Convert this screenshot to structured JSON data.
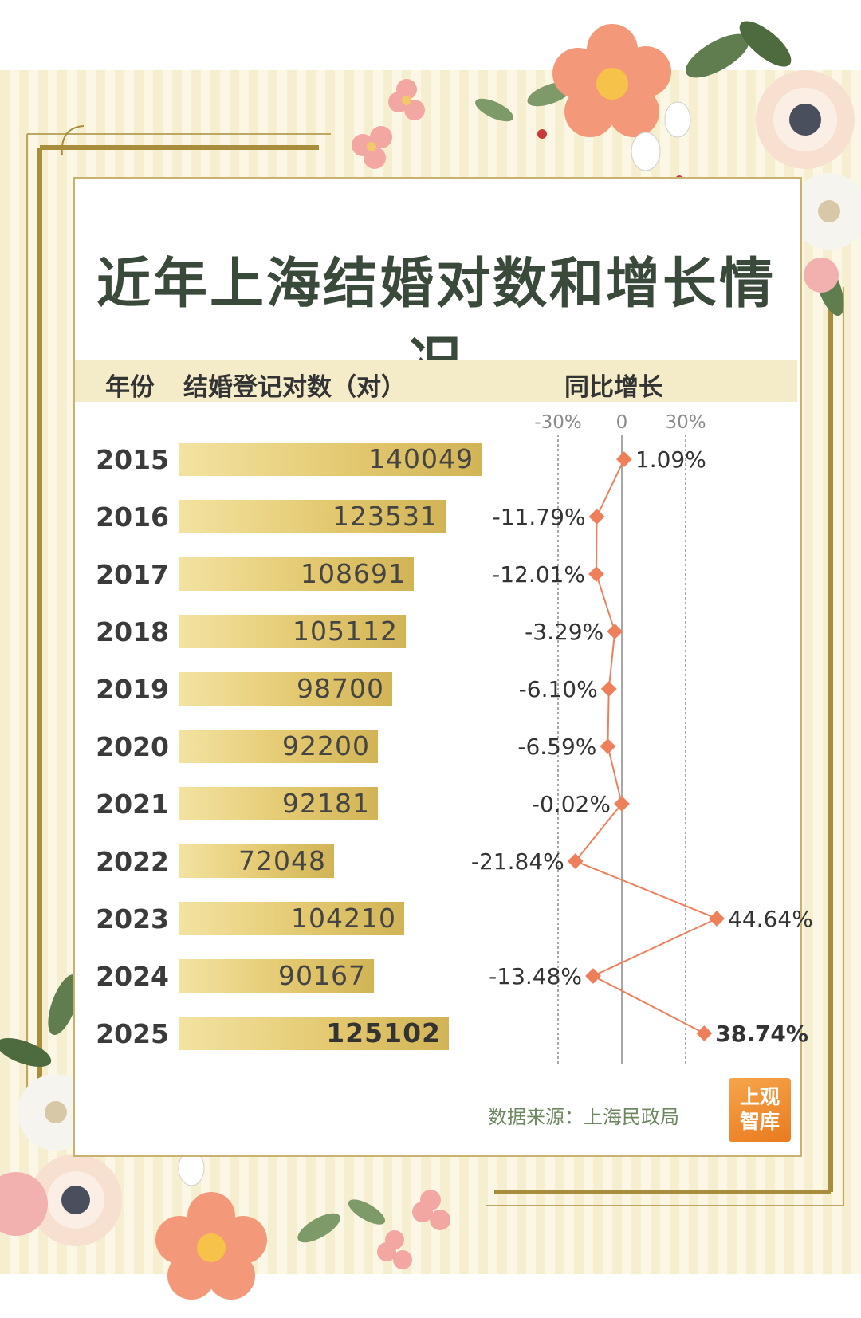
{
  "title": "近年上海结婚对数和增长情况",
  "header": {
    "year_col": "年份",
    "count_col": "结婚登记对数（对）",
    "growth_col": "同比增长"
  },
  "source": "数据来源：上海民政局",
  "logo": {
    "line1": "上观",
    "line2": "智库"
  },
  "colors": {
    "bar": "#e4c971",
    "growth_line": "#ef7f5a",
    "title": "#394a3a",
    "source": "#6d8760"
  },
  "chart_data": [
    {
      "type": "bar",
      "title": "近年上海结婚对数和增长情况",
      "ylabel": "结婚登记对数（对）",
      "categories": [
        "2015",
        "2016",
        "2017",
        "2018",
        "2019",
        "2020",
        "2021",
        "2022",
        "2023",
        "2024",
        "2025"
      ],
      "values": [
        140049,
        123531,
        108691,
        105112,
        98700,
        92200,
        92181,
        72048,
        104210,
        90167,
        125102
      ],
      "value_labels": [
        "140049",
        "123531",
        "108691",
        "105112",
        "98700",
        "92200",
        "92181",
        "72048",
        "104210",
        "90167",
        "125102"
      ],
      "highlight": "2025"
    },
    {
      "type": "line",
      "title": "同比增长",
      "categories": [
        "2015",
        "2016",
        "2017",
        "2018",
        "2019",
        "2020",
        "2021",
        "2022",
        "2023",
        "2024",
        "2025"
      ],
      "values": [
        1.09,
        -11.79,
        -12.01,
        -3.29,
        -6.1,
        -6.59,
        -0.02,
        -21.84,
        44.64,
        -13.48,
        38.74
      ],
      "value_labels": [
        "1.09%",
        "-11.79%",
        "-12.01%",
        "-3.29%",
        "-6.10%",
        "-6.59%",
        "-0.02%",
        "-21.84%",
        "44.64%",
        "-13.48%",
        "38.74%"
      ],
      "ticks": [
        -30,
        0,
        30
      ],
      "tick_labels": [
        "-30%",
        "0",
        "30%"
      ],
      "highlight": "2025"
    }
  ]
}
